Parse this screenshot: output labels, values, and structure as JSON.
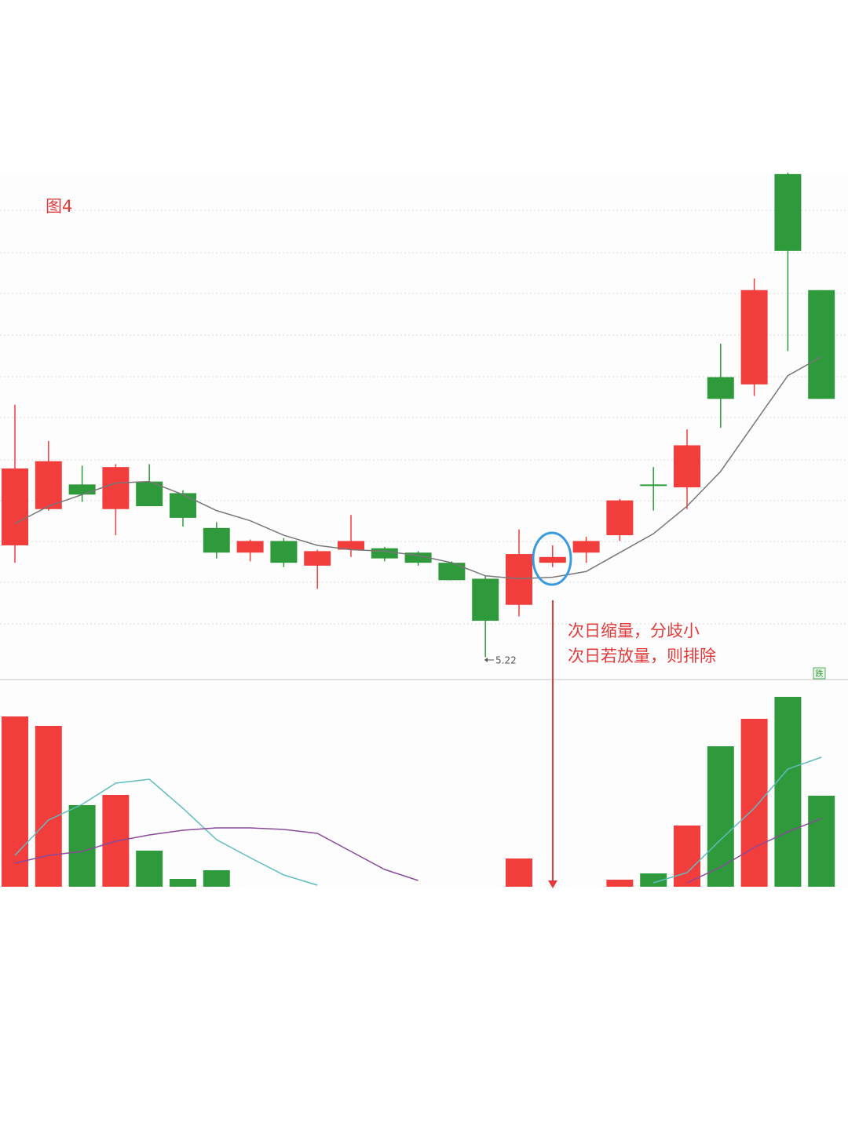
{
  "chart_data": {
    "type": "candlestick",
    "title": "图4",
    "annotations": [
      "次日缩量，分歧小",
      "次日若放量，则排除"
    ],
    "marker": "跌",
    "up_color": "#f23d3d",
    "down_color": "#2f9a3c",
    "ylim": [
      5.07,
      8.56
    ],
    "open": [
      5.99,
      6.24,
      6.41,
      6.24,
      6.43,
      6.35,
      6.11,
      5.94,
      6.02,
      5.85,
      5.96,
      5.97,
      5.94,
      5.87,
      5.76,
      5.58,
      5.87,
      5.94,
      6.06,
      6.41,
      6.39,
      7.15,
      7.1,
      8.55,
      7.75
    ],
    "close": [
      6.52,
      6.57,
      6.34,
      6.53,
      6.26,
      6.18,
      5.94,
      6.02,
      5.87,
      5.95,
      6.02,
      5.9,
      5.87,
      5.75,
      5.47,
      5.93,
      5.91,
      6.02,
      6.3,
      6.4,
      6.68,
      7.0,
      7.75,
      8.02,
      7.0
    ],
    "high": [
      6.96,
      6.71,
      6.54,
      6.55,
      6.55,
      6.37,
      6.15,
      6.03,
      6.04,
      5.96,
      6.2,
      5.98,
      5.95,
      5.88,
      5.78,
      6.1,
      5.99,
      6.05,
      6.31,
      6.53,
      6.79,
      7.38,
      7.83,
      8.56,
      7.75
    ],
    "low": [
      5.87,
      6.23,
      6.29,
      6.06,
      6.26,
      6.12,
      5.9,
      5.88,
      5.84,
      5.69,
      5.91,
      5.88,
      5.85,
      5.75,
      5.22,
      5.5,
      5.84,
      5.87,
      6.02,
      6.23,
      6.24,
      6.8,
      7.02,
      7.33,
      7.0
    ],
    "ma": {
      "color": "#777777",
      "values": [
        6.14,
        6.26,
        6.34,
        6.42,
        6.43,
        6.34,
        6.23,
        6.16,
        6.06,
        5.99,
        5.96,
        5.95,
        5.92,
        5.87,
        5.78,
        5.76,
        5.77,
        5.81,
        5.94,
        6.07,
        6.26,
        6.5,
        6.83,
        7.16,
        7.29
      ]
    },
    "volume": {
      "ylim": [
        0,
        250
      ],
      "values": [
        217,
        205,
        104,
        117,
        46,
        10,
        21,
        0,
        0,
        0,
        0,
        0,
        0,
        0,
        0,
        36,
        0,
        0,
        9,
        17,
        78,
        179,
        214,
        242,
        116
      ],
      "ma": [
        {
          "color": "#5fbcc0",
          "values": [
            40,
            85,
            105,
            132,
            137,
            100,
            60,
            37,
            15,
            2,
            null,
            null,
            null,
            null,
            null,
            null,
            null,
            null,
            null,
            5,
            18,
            60,
            100,
            150,
            165
          ]
        },
        {
          "color": "#8a4a9a",
          "values": [
            30,
            40,
            45,
            58,
            66,
            72,
            75,
            75,
            73,
            68,
            45,
            22,
            8,
            null,
            null,
            null,
            null,
            null,
            null,
            null,
            5,
            25,
            50,
            70,
            87
          ]
        }
      ]
    }
  }
}
